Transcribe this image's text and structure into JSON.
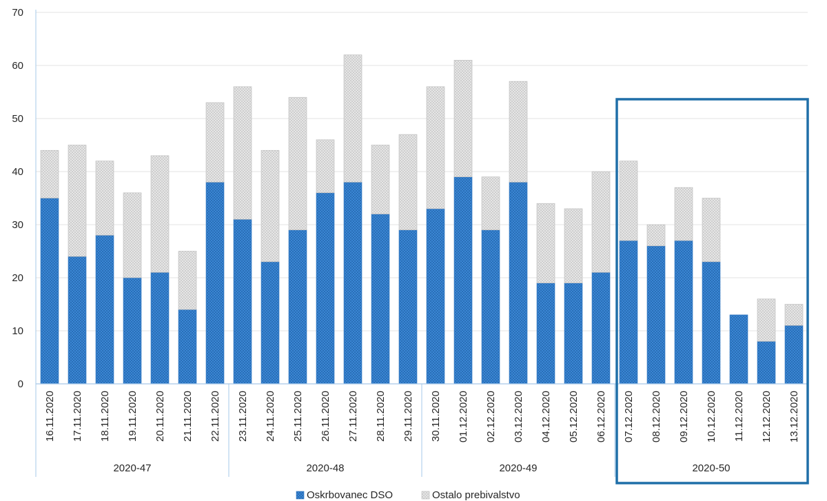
{
  "chart_data": {
    "type": "bar",
    "stacked": true,
    "title": "",
    "xlabel": "",
    "ylabel": "",
    "ylim": [
      0,
      70
    ],
    "yticks": [
      0,
      10,
      20,
      30,
      40,
      50,
      60,
      70
    ],
    "grid": true,
    "legend_position": "bottom",
    "categories": [
      "16.11.2020",
      "17.11.2020",
      "18.11.2020",
      "19.11.2020",
      "20.11.2020",
      "21.11.2020",
      "22.11.2020",
      "23.11.2020",
      "24.11.2020",
      "25.11.2020",
      "26.11.2020",
      "27.11.2020",
      "28.11.2020",
      "29.11.2020",
      "30.11.2020",
      "01.12.2020",
      "02.12.2020",
      "03.12.2020",
      "04.12.2020",
      "05.12.2020",
      "06.12.2020",
      "07.12.2020",
      "08.12.2020",
      "09.12.2020",
      "10.12.2020",
      "11.12.2020",
      "12.12.2020",
      "13.12.2020"
    ],
    "groups": [
      {
        "label": "2020-47",
        "count": 7
      },
      {
        "label": "2020-48",
        "count": 7
      },
      {
        "label": "2020-49",
        "count": 7
      },
      {
        "label": "2020-50",
        "count": 7,
        "highlighted": true
      }
    ],
    "series": [
      {
        "name": "Oskrbovanec DSO",
        "color": "#2e75c3",
        "values": [
          35,
          24,
          28,
          20,
          21,
          14,
          38,
          31,
          23,
          29,
          36,
          38,
          32,
          29,
          33,
          39,
          29,
          38,
          19,
          19,
          21,
          27,
          26,
          27,
          23,
          13,
          8,
          11
        ]
      },
      {
        "name": "Ostalo prebivalstvo",
        "color": "#d9d9d9",
        "values": [
          9,
          21,
          14,
          16,
          22,
          11,
          15,
          25,
          21,
          25,
          10,
          24,
          13,
          18,
          23,
          22,
          10,
          19,
          15,
          14,
          19,
          15,
          4,
          10,
          12,
          0,
          8,
          4
        ]
      }
    ],
    "highlight_color": "#1f6fa8"
  }
}
